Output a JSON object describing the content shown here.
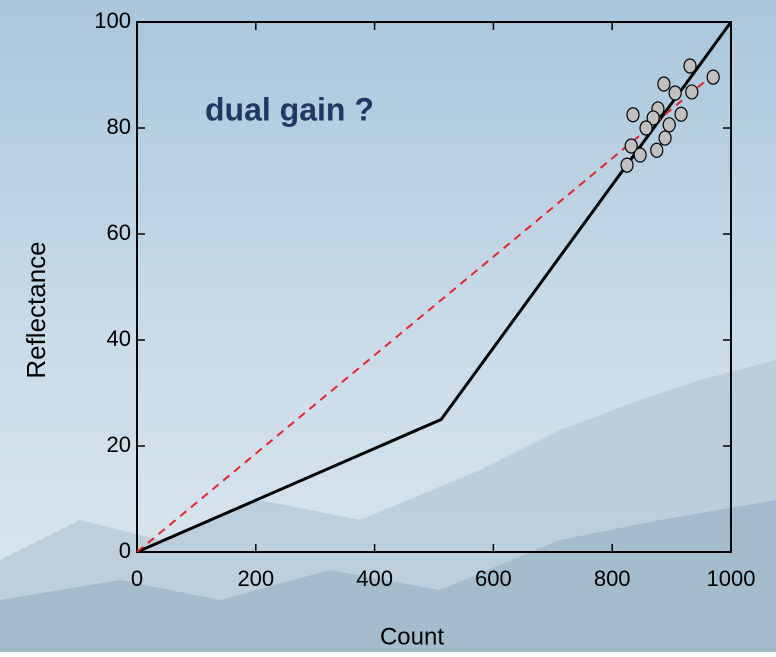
{
  "chart_data": {
    "type": "line",
    "annotation": "dual gain ?",
    "xlabel": "Count",
    "ylabel": "Reflectance",
    "xlim": [
      0,
      1000
    ],
    "ylim": [
      0,
      100
    ],
    "xticks": [
      0,
      200,
      400,
      600,
      800,
      1000
    ],
    "yticks": [
      0,
      20,
      40,
      60,
      80,
      100
    ],
    "series": [
      {
        "type": "line",
        "style": "solid",
        "color": "#000000",
        "x": [
          0,
          512,
          1000
        ],
        "values": [
          0,
          25,
          100
        ]
      },
      {
        "type": "line",
        "style": "dashed",
        "color": "#e8232a",
        "x": [
          0,
          980
        ],
        "values": [
          0,
          91
        ]
      },
      {
        "type": "scatter",
        "color": "#c0c0c0",
        "x": [
          835,
          887,
          931,
          970,
          934,
          906,
          916,
          877,
          869,
          857,
          896,
          832,
          847,
          875,
          889,
          825
        ],
        "values": [
          82.5,
          88.3,
          91.7,
          89.6,
          86.8,
          86.6,
          82.6,
          83.6,
          81.9,
          80.0,
          80.6,
          76.6,
          74.9,
          75.8,
          78.1,
          73.0
        ]
      }
    ]
  }
}
